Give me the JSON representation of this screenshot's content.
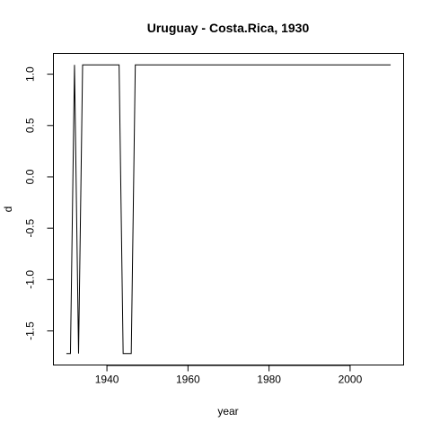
{
  "chart_data": {
    "type": "line",
    "title": "Uruguay - Costa.Rica, 1930",
    "xlabel": "year",
    "ylabel": "d",
    "xlim": [
      1926.8,
      2013.2
    ],
    "ylim": [
      -1.832,
      1.202
    ],
    "xticks": [
      1940,
      1960,
      1980,
      2000
    ],
    "xtick_labels": [
      "1940",
      "1960",
      "1980",
      "2000"
    ],
    "yticks": [
      -1.5,
      -1.0,
      -0.5,
      0.0,
      0.5,
      1.0
    ],
    "ytick_labels": [
      "-1.5",
      "-1.0",
      "-0.5",
      "0.0",
      "0.5",
      "1.0"
    ],
    "grid": false,
    "legend": "none",
    "series": [
      {
        "x": [
          1930,
          1931,
          1932,
          1933,
          1934,
          1935,
          1936,
          1937,
          1938,
          1939,
          1940,
          1941,
          1942,
          1943,
          1944,
          1945,
          1946,
          1947,
          1948,
          1949,
          1950,
          1951,
          1952,
          1953,
          1954,
          1955,
          1956,
          1957,
          1958,
          1959,
          1960,
          1961,
          1962,
          1963,
          1964,
          1965,
          1966,
          1967,
          1968,
          1969,
          1970,
          1971,
          1972,
          1973,
          1974,
          1975,
          1976,
          1977,
          1978,
          1979,
          1980,
          1981,
          1982,
          1983,
          1984,
          1985,
          1986,
          1987,
          1988,
          1989,
          1990,
          1991,
          1992,
          1993,
          1994,
          1995,
          1996,
          1997,
          1998,
          1999,
          2000,
          2001,
          2002,
          2003,
          2004,
          2005,
          2006,
          2007,
          2008,
          2009,
          2010
        ],
        "values": [
          -1.72,
          -1.72,
          1.09,
          -1.72,
          1.09,
          1.09,
          1.09,
          1.09,
          1.09,
          1.09,
          1.09,
          1.09,
          1.09,
          1.09,
          -1.72,
          -1.72,
          -1.72,
          1.09,
          1.09,
          1.09,
          1.09,
          1.09,
          1.09,
          1.09,
          1.09,
          1.09,
          1.09,
          1.09,
          1.09,
          1.09,
          1.09,
          1.09,
          1.09,
          1.09,
          1.09,
          1.09,
          1.09,
          1.09,
          1.09,
          1.09,
          1.09,
          1.09,
          1.09,
          1.09,
          1.09,
          1.09,
          1.09,
          1.09,
          1.09,
          1.09,
          1.09,
          1.09,
          1.09,
          1.09,
          1.09,
          1.09,
          1.09,
          1.09,
          1.09,
          1.09,
          1.09,
          1.09,
          1.09,
          1.09,
          1.09,
          1.09,
          1.09,
          1.09,
          1.09,
          1.09,
          1.09,
          1.09,
          1.09,
          1.09,
          1.09,
          1.09,
          1.09,
          1.09,
          1.09,
          1.09,
          1.09
        ]
      }
    ]
  }
}
